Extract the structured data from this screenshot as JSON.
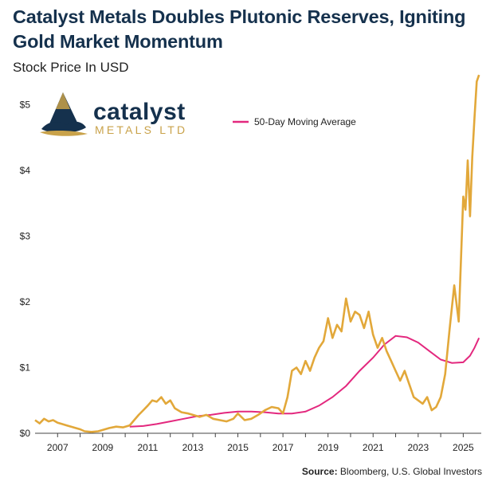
{
  "header": {
    "title": "Catalyst Metals Doubles Plutonic Reserves, Igniting Gold Market Momentum",
    "subtitle": "Stock Price In USD"
  },
  "footer": {
    "source_label": "Source:",
    "source_text": "Bloomberg, U.S. Global Investors"
  },
  "logo": {
    "word": "catalyst",
    "sub": "METALS LTD",
    "icon": "mountain-logo-icon"
  },
  "colors": {
    "price": "#e2a83a",
    "moving_average": "#e3287e",
    "title": "#15314d",
    "axis": "#222222"
  },
  "chart_data": {
    "type": "line",
    "xlabel": "",
    "ylabel": "",
    "xlim": [
      2006.0,
      2025.8
    ],
    "ylim": [
      0,
      5.5
    ],
    "x_ticks": [
      2007,
      2009,
      2011,
      2013,
      2015,
      2017,
      2019,
      2021,
      2023,
      2025
    ],
    "y_ticks": [
      0,
      1,
      2,
      3,
      4,
      5
    ],
    "y_tick_labels": [
      "$0",
      "$1",
      "$2",
      "$3",
      "$4",
      "$5"
    ],
    "grid": false,
    "legend_position": "top-center",
    "series": [
      {
        "name": "",
        "color": "#e2a83a",
        "x": [
          2006.0,
          2006.2,
          2006.4,
          2006.6,
          2006.8,
          2007.0,
          2007.2,
          2007.4,
          2007.6,
          2007.8,
          2008.0,
          2008.2,
          2008.5,
          2008.8,
          2009.0,
          2009.3,
          2009.6,
          2009.9,
          2010.2,
          2010.4,
          2010.6,
          2010.8,
          2011.0,
          2011.2,
          2011.4,
          2011.6,
          2011.8,
          2012.0,
          2012.2,
          2012.5,
          2012.8,
          2013.0,
          2013.3,
          2013.6,
          2013.9,
          2014.2,
          2014.5,
          2014.8,
          2015.0,
          2015.3,
          2015.6,
          2015.9,
          2016.2,
          2016.5,
          2016.8,
          2017.0,
          2017.2,
          2017.4,
          2017.6,
          2017.8,
          2018.0,
          2018.2,
          2018.4,
          2018.6,
          2018.8,
          2019.0,
          2019.2,
          2019.4,
          2019.6,
          2019.8,
          2020.0,
          2020.2,
          2020.4,
          2020.6,
          2020.8,
          2021.0,
          2021.2,
          2021.4,
          2021.6,
          2021.8,
          2022.0,
          2022.2,
          2022.4,
          2022.6,
          2022.8,
          2023.0,
          2023.2,
          2023.4,
          2023.6,
          2023.8,
          2024.0,
          2024.2,
          2024.4,
          2024.6,
          2024.8,
          2025.0,
          2025.1,
          2025.2,
          2025.3,
          2025.4,
          2025.5,
          2025.6,
          2025.7
        ],
        "values": [
          0.2,
          0.15,
          0.22,
          0.18,
          0.2,
          0.16,
          0.14,
          0.12,
          0.1,
          0.08,
          0.06,
          0.03,
          0.02,
          0.03,
          0.05,
          0.08,
          0.1,
          0.09,
          0.12,
          0.2,
          0.28,
          0.35,
          0.42,
          0.5,
          0.48,
          0.55,
          0.45,
          0.5,
          0.38,
          0.32,
          0.3,
          0.28,
          0.25,
          0.28,
          0.22,
          0.2,
          0.18,
          0.22,
          0.3,
          0.2,
          0.22,
          0.28,
          0.35,
          0.4,
          0.38,
          0.3,
          0.55,
          0.95,
          1.0,
          0.9,
          1.1,
          0.95,
          1.15,
          1.3,
          1.4,
          1.75,
          1.45,
          1.65,
          1.55,
          2.05,
          1.7,
          1.85,
          1.8,
          1.6,
          1.85,
          1.5,
          1.3,
          1.45,
          1.25,
          1.1,
          0.95,
          0.8,
          0.95,
          0.75,
          0.55,
          0.5,
          0.45,
          0.55,
          0.35,
          0.4,
          0.55,
          0.9,
          1.6,
          2.25,
          1.7,
          3.6,
          3.4,
          4.15,
          3.3,
          4.2,
          4.8,
          5.35,
          5.45
        ]
      },
      {
        "name": "50-Day Moving Average",
        "color": "#e3287e",
        "x": [
          2010.2,
          2010.8,
          2011.4,
          2012.0,
          2012.6,
          2013.2,
          2013.8,
          2014.4,
          2015.0,
          2015.6,
          2016.2,
          2016.8,
          2017.4,
          2018.0,
          2018.6,
          2019.2,
          2019.8,
          2020.4,
          2021.0,
          2021.5,
          2022.0,
          2022.5,
          2023.0,
          2023.5,
          2024.0,
          2024.5,
          2025.0,
          2025.3,
          2025.5,
          2025.7
        ],
        "values": [
          0.1,
          0.11,
          0.14,
          0.18,
          0.22,
          0.26,
          0.28,
          0.31,
          0.33,
          0.33,
          0.32,
          0.3,
          0.3,
          0.33,
          0.42,
          0.55,
          0.72,
          0.95,
          1.15,
          1.35,
          1.48,
          1.46,
          1.38,
          1.25,
          1.12,
          1.07,
          1.08,
          1.18,
          1.3,
          1.45
        ]
      }
    ]
  }
}
